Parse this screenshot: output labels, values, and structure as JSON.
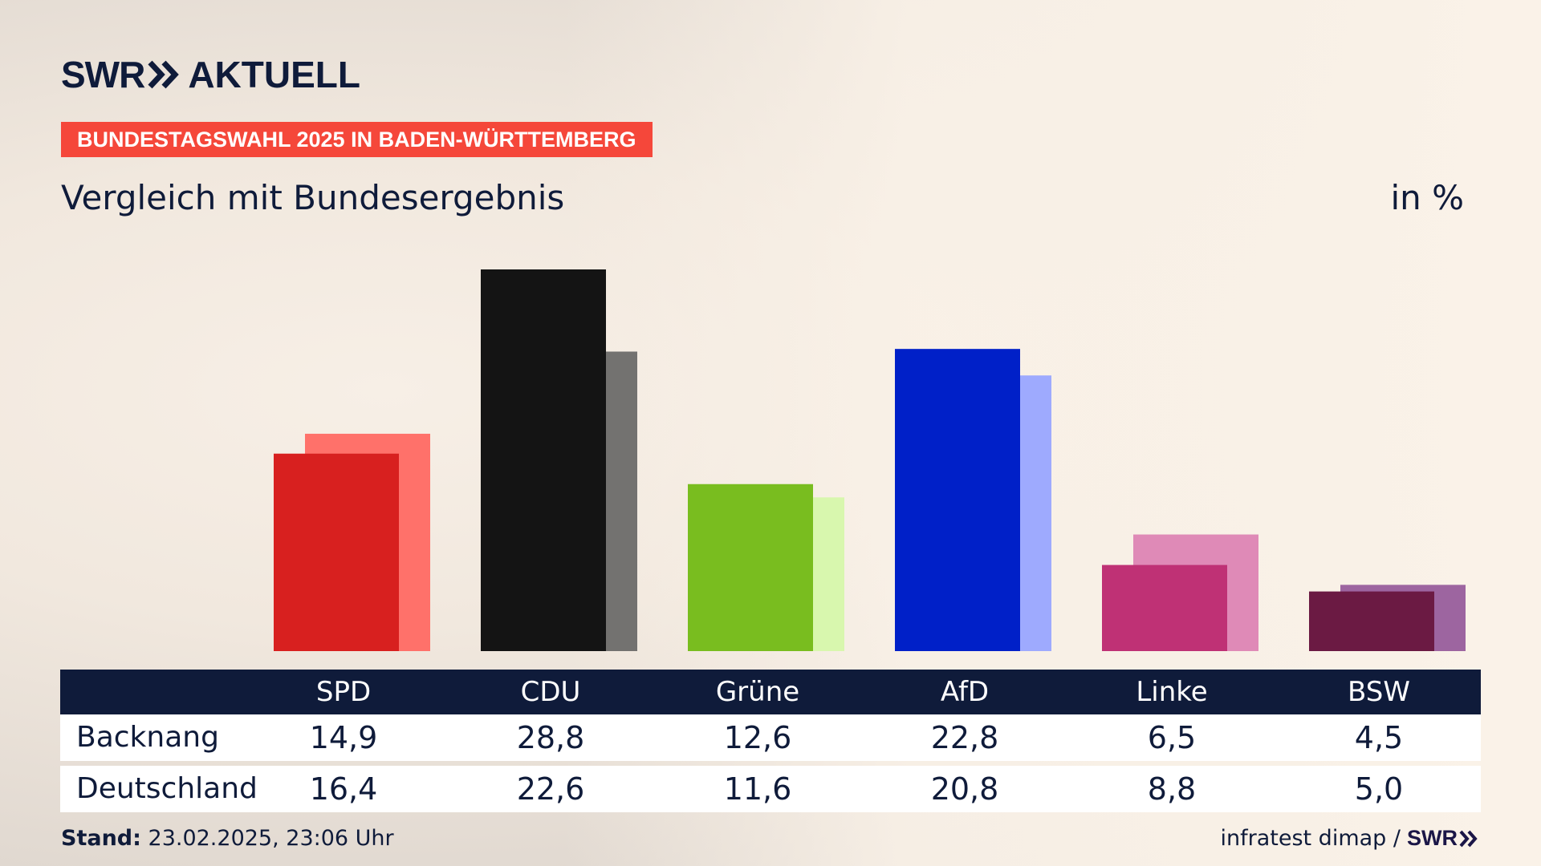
{
  "brand": {
    "name": "SWR",
    "section": "AKTUELL"
  },
  "badge": "BUNDESTAGSWAHL 2025 IN BADEN-WÜRTTEMBERG",
  "subtitle": "Vergleich mit Bundesergebnis",
  "unit": "in %",
  "footer": {
    "stand_label": "Stand:",
    "stand_value": "23.02.2025, 23:06 Uhr",
    "source": "infratest dimap /",
    "source_brand": "SWR"
  },
  "table": {
    "rows": [
      {
        "label": "Backnang",
        "values": [
          "14,9",
          "28,8",
          "12,6",
          "22,8",
          "6,5",
          "4,5"
        ]
      },
      {
        "label": "Deutschland",
        "values": [
          "16,4",
          "22,6",
          "11,6",
          "20,8",
          "8,8",
          "5,0"
        ]
      }
    ]
  },
  "chart_data": {
    "type": "bar",
    "categories": [
      "SPD",
      "CDU",
      "Grüne",
      "AfD",
      "Linke",
      "BSW"
    ],
    "series": [
      {
        "name": "Backnang",
        "values": [
          14.9,
          28.8,
          12.6,
          22.8,
          6.5,
          4.5
        ],
        "colors": [
          "#d8201f",
          "#141414",
          "#79bd1f",
          "#0020c8",
          "#bf3175",
          "#6b1a43"
        ]
      },
      {
        "name": "Deutschland",
        "values": [
          16.4,
          22.6,
          11.6,
          20.8,
          8.8,
          5.0
        ],
        "colors": [
          "#ff716a",
          "#737270",
          "#d8f7ae",
          "#9eaafe",
          "#df8ab7",
          "#9d65a0"
        ]
      }
    ],
    "ylim": [
      0,
      28.8
    ],
    "legend": "none",
    "grid": false
  }
}
